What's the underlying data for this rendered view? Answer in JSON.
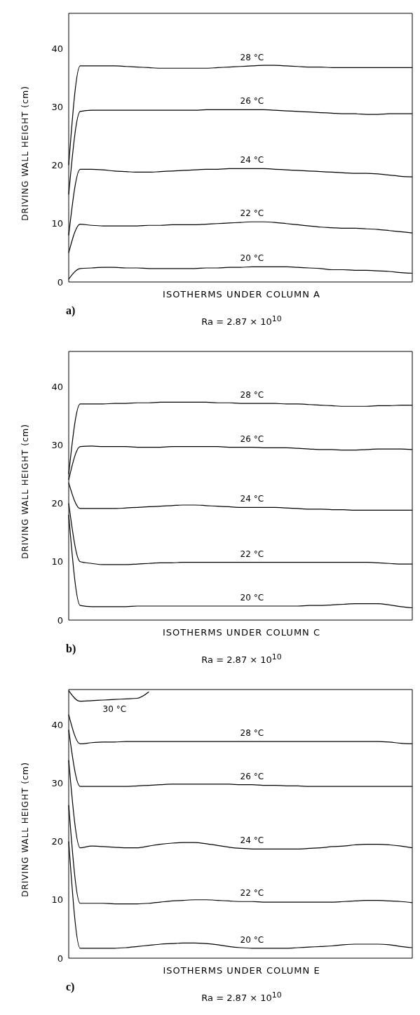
{
  "chart_data": [
    {
      "type": "line",
      "xlabel": "ISOTHERMS UNDER COLUMN A",
      "ylabel": "DRIVING WALL HEIGHT (cm)",
      "annotations": [
        "a)",
        "Ra = 2.87 × 10$^{10}$"
      ],
      "ylim": [
        0,
        46
      ],
      "yticks": [
        0,
        10,
        20,
        30,
        40
      ],
      "tick_labels": "y",
      "categories": [
        null,
        null,
        null,
        null,
        null,
        null,
        null,
        null,
        null,
        null,
        null,
        null,
        null,
        null,
        null,
        null,
        null,
        null,
        null,
        null,
        null,
        null,
        null,
        null,
        null,
        null,
        null,
        null,
        null,
        null,
        null
      ],
      "series": [
        {
          "name": "28 °C",
          "color": "#000000",
          "values": [
            20,
            37,
            37,
            37,
            37,
            36.9,
            36.8,
            36.7,
            36.6,
            36.6,
            36.6,
            36.6,
            36.6,
            36.7,
            36.8,
            36.9,
            37,
            37.1,
            37.1,
            37,
            36.9,
            36.8,
            36.8,
            36.7,
            36.7,
            36.7,
            36.7,
            36.7,
            36.7,
            36.7,
            36.7
          ]
        },
        {
          "name": "26 °C",
          "color": "#000000",
          "values": [
            15,
            29.2,
            29.4,
            29.4,
            29.4,
            29.4,
            29.4,
            29.4,
            29.4,
            29.4,
            29.4,
            29.4,
            29.5,
            29.5,
            29.5,
            29.5,
            29.5,
            29.5,
            29.4,
            29.3,
            29.2,
            29.1,
            29,
            28.9,
            28.8,
            28.8,
            28.7,
            28.7,
            28.8,
            28.8,
            28.8
          ]
        },
        {
          "name": "24 °C",
          "color": "#000000",
          "values": [
            8,
            19.3,
            19.3,
            19.2,
            19,
            18.9,
            18.8,
            18.8,
            18.9,
            19,
            19.1,
            19.2,
            19.3,
            19.3,
            19.4,
            19.4,
            19.4,
            19.4,
            19.3,
            19.2,
            19.1,
            19,
            18.9,
            18.8,
            18.7,
            18.6,
            18.6,
            18.5,
            18.3,
            18.1,
            18
          ]
        },
        {
          "name": "22 °C",
          "color": "#000000",
          "values": [
            5,
            9.9,
            9.7,
            9.6,
            9.6,
            9.6,
            9.6,
            9.7,
            9.7,
            9.8,
            9.8,
            9.8,
            9.9,
            10,
            10.1,
            10.2,
            10.3,
            10.3,
            10.2,
            10,
            9.8,
            9.6,
            9.4,
            9.3,
            9.2,
            9.2,
            9.1,
            9,
            8.8,
            8.6,
            8.4
          ]
        },
        {
          "name": "20 °C",
          "color": "#000000",
          "values": [
            0.5,
            2.3,
            2.4,
            2.5,
            2.5,
            2.4,
            2.4,
            2.3,
            2.3,
            2.3,
            2.3,
            2.3,
            2.4,
            2.4,
            2.5,
            2.5,
            2.6,
            2.6,
            2.6,
            2.6,
            2.5,
            2.4,
            2.3,
            2.1,
            2.1,
            2,
            2,
            1.9,
            1.8,
            1.6,
            1.5
          ]
        }
      ]
    },
    {
      "type": "line",
      "xlabel": "ISOTHERMS UNDER COLUMN C",
      "ylabel": "DRIVING WALL HEIGHT (cm)",
      "annotations": [
        "b)",
        "Ra = 2.87 × 10$^{10}$"
      ],
      "ylim": [
        0,
        46
      ],
      "yticks": [
        0,
        10,
        20,
        30,
        40
      ],
      "tick_labels": "y",
      "categories": [
        null,
        null,
        null,
        null,
        null,
        null,
        null,
        null,
        null,
        null,
        null,
        null,
        null,
        null,
        null,
        null,
        null,
        null,
        null,
        null,
        null,
        null,
        null,
        null,
        null,
        null,
        null,
        null,
        null,
        null,
        null
      ],
      "series": [
        {
          "name": "28 °C",
          "color": "#000000",
          "values": [
            25,
            37,
            37,
            37,
            37.1,
            37.1,
            37.2,
            37.2,
            37.3,
            37.3,
            37.3,
            37.3,
            37.3,
            37.2,
            37.2,
            37.1,
            37.1,
            37.1,
            37.1,
            37,
            37,
            36.9,
            36.8,
            36.7,
            36.6,
            36.6,
            36.6,
            36.7,
            36.7,
            36.8,
            36.8
          ]
        },
        {
          "name": "26 °C",
          "color": "#000000",
          "values": [
            24,
            29.7,
            29.8,
            29.7,
            29.7,
            29.7,
            29.6,
            29.6,
            29.6,
            29.7,
            29.7,
            29.7,
            29.7,
            29.7,
            29.6,
            29.6,
            29.6,
            29.5,
            29.5,
            29.5,
            29.4,
            29.3,
            29.2,
            29.2,
            29.1,
            29.1,
            29.2,
            29.3,
            29.3,
            29.3,
            29.2
          ]
        },
        {
          "name": "24 °C",
          "color": "#000000",
          "values": [
            23.5,
            19.1,
            19.1,
            19.1,
            19.1,
            19.2,
            19.3,
            19.4,
            19.5,
            19.6,
            19.7,
            19.7,
            19.6,
            19.5,
            19.4,
            19.3,
            19.3,
            19.3,
            19.3,
            19.2,
            19.1,
            19,
            19,
            18.9,
            18.9,
            18.8,
            18.8,
            18.8,
            18.8,
            18.8,
            18.8
          ]
        },
        {
          "name": "22 °C",
          "color": "#000000",
          "values": [
            20,
            10,
            9.7,
            9.5,
            9.5,
            9.5,
            9.6,
            9.7,
            9.8,
            9.8,
            9.9,
            9.9,
            9.9,
            9.9,
            9.9,
            9.9,
            9.9,
            9.9,
            9.9,
            9.9,
            9.9,
            9.9,
            9.9,
            9.9,
            9.9,
            9.9,
            9.9,
            9.8,
            9.7,
            9.6,
            9.6
          ]
        },
        {
          "name": "20 °C",
          "color": "#000000",
          "values": [
            18,
            2.5,
            2.3,
            2.3,
            2.3,
            2.3,
            2.4,
            2.4,
            2.4,
            2.4,
            2.4,
            2.4,
            2.4,
            2.4,
            2.4,
            2.4,
            2.4,
            2.4,
            2.4,
            2.4,
            2.4,
            2.5,
            2.5,
            2.6,
            2.7,
            2.8,
            2.8,
            2.8,
            2.6,
            2.3,
            2.1
          ]
        }
      ]
    },
    {
      "type": "line",
      "xlabel": "ISOTHERMS UNDER COLUMN E",
      "ylabel": "DRIVING WALL HEIGHT (cm)",
      "annotations": [
        "c)",
        "Ra = 2.87 × 10$^{10}$"
      ],
      "ylim": [
        0,
        46
      ],
      "yticks": [
        0,
        10,
        20,
        30,
        40
      ],
      "tick_labels": "y",
      "categories": [
        null,
        null,
        null,
        null,
        null,
        null,
        null,
        null,
        null,
        null,
        null,
        null,
        null,
        null,
        null,
        null,
        null,
        null,
        null,
        null,
        null,
        null,
        null,
        null,
        null,
        null,
        null,
        null,
        null,
        null,
        null
      ],
      "series": [
        {
          "name": "30 °C",
          "color": "#000000",
          "values": [
            45.8,
            44,
            44.1,
            44.2,
            44.3,
            44.4,
            44.5,
            45.6,
            null,
            null,
            null,
            null,
            null,
            null,
            null,
            null,
            null,
            null,
            null,
            null,
            null,
            null,
            null,
            null,
            null,
            null,
            null,
            null,
            null,
            null,
            null
          ]
        },
        {
          "name": "28 °C",
          "color": "#000000",
          "values": [
            41.7,
            36.7,
            36.9,
            37,
            37,
            37.1,
            37.1,
            37.1,
            37.1,
            37.1,
            37.1,
            37.1,
            37.1,
            37.1,
            37.1,
            37.1,
            37.1,
            37.1,
            37.1,
            37.1,
            37.1,
            37.1,
            37.1,
            37.1,
            37.1,
            37.1,
            37.1,
            37.1,
            37,
            36.8,
            36.7
          ]
        },
        {
          "name": "26 °C",
          "color": "#000000",
          "values": [
            39.1,
            29.4,
            29.4,
            29.4,
            29.4,
            29.4,
            29.5,
            29.6,
            29.7,
            29.8,
            29.8,
            29.8,
            29.8,
            29.8,
            29.8,
            29.7,
            29.7,
            29.6,
            29.6,
            29.5,
            29.5,
            29.4,
            29.4,
            29.4,
            29.4,
            29.4,
            29.4,
            29.4,
            29.4,
            29.4,
            29.4
          ]
        },
        {
          "name": "24 °C",
          "color": "#000000",
          "values": [
            33.9,
            18.9,
            19.2,
            19.1,
            19,
            18.9,
            18.9,
            19.2,
            19.5,
            19.7,
            19.8,
            19.8,
            19.6,
            19.3,
            19,
            18.8,
            18.7,
            18.7,
            18.7,
            18.7,
            18.7,
            18.8,
            18.9,
            19.1,
            19.2,
            19.4,
            19.5,
            19.5,
            19.4,
            19.2,
            18.9
          ]
        },
        {
          "name": "22 °C",
          "color": "#000000",
          "values": [
            26.2,
            9.4,
            9.4,
            9.4,
            9.3,
            9.3,
            9.3,
            9.4,
            9.6,
            9.8,
            9.9,
            10,
            10,
            9.9,
            9.8,
            9.7,
            9.7,
            9.6,
            9.6,
            9.6,
            9.6,
            9.6,
            9.6,
            9.6,
            9.7,
            9.8,
            9.9,
            9.9,
            9.8,
            9.7,
            9.5
          ]
        },
        {
          "name": "20 °C",
          "color": "#000000",
          "values": [
            20,
            1.7,
            1.7,
            1.7,
            1.7,
            1.8,
            2,
            2.2,
            2.4,
            2.5,
            2.6,
            2.6,
            2.5,
            2.3,
            2,
            1.8,
            1.7,
            1.7,
            1.7,
            1.7,
            1.8,
            1.9,
            2,
            2.1,
            2.3,
            2.4,
            2.4,
            2.4,
            2.3,
            2,
            1.8
          ]
        }
      ]
    }
  ]
}
